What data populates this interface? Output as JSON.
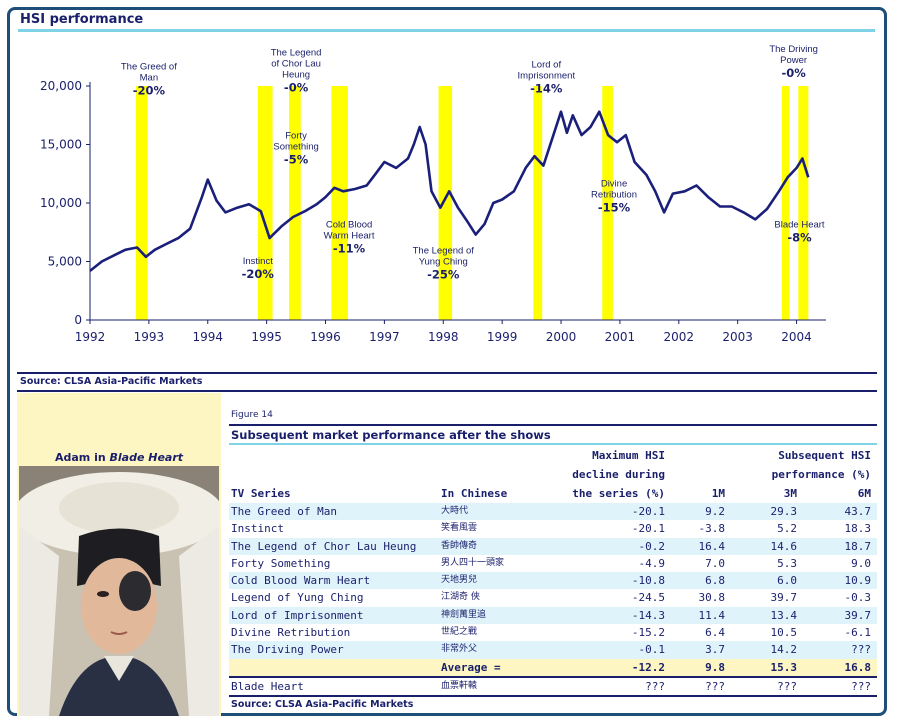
{
  "header": {
    "title": "HSI performance"
  },
  "chart_data": {
    "type": "line",
    "title": "HSI performance",
    "ylim": [
      0,
      20000
    ],
    "yticks": [
      0,
      5000,
      10000,
      15000,
      20000
    ],
    "ytick_labels": [
      "0",
      "5,000",
      "10,000",
      "15,000",
      "20,000"
    ],
    "xticks": [
      1992,
      1993,
      1994,
      1995,
      1996,
      1997,
      1998,
      1999,
      2000,
      2001,
      2002,
      2003,
      2004
    ],
    "xlim": [
      1992,
      2004.5
    ],
    "grid": false,
    "line_color": "#1a1f7a",
    "band_color": "#ffff00",
    "series": [
      {
        "values": [
          [
            1992.0,
            4200
          ],
          [
            1992.2,
            5000
          ],
          [
            1992.4,
            5500
          ],
          [
            1992.6,
            6000
          ],
          [
            1992.8,
            6200
          ],
          [
            1992.95,
            5400
          ],
          [
            1993.1,
            6000
          ],
          [
            1993.3,
            6500
          ],
          [
            1993.5,
            7000
          ],
          [
            1993.7,
            7800
          ],
          [
            1993.9,
            10500
          ],
          [
            1994.0,
            12000
          ],
          [
            1994.15,
            10200
          ],
          [
            1994.3,
            9200
          ],
          [
            1994.5,
            9600
          ],
          [
            1994.7,
            9900
          ],
          [
            1994.9,
            9300
          ],
          [
            1995.05,
            7000
          ],
          [
            1995.25,
            8000
          ],
          [
            1995.45,
            8800
          ],
          [
            1995.65,
            9300
          ],
          [
            1995.85,
            9900
          ],
          [
            1996.0,
            10500
          ],
          [
            1996.15,
            11300
          ],
          [
            1996.3,
            11000
          ],
          [
            1996.5,
            11200
          ],
          [
            1996.7,
            11500
          ],
          [
            1996.85,
            12500
          ],
          [
            1997.0,
            13500
          ],
          [
            1997.2,
            13000
          ],
          [
            1997.4,
            13800
          ],
          [
            1997.5,
            15000
          ],
          [
            1997.6,
            16500
          ],
          [
            1997.7,
            15000
          ],
          [
            1997.8,
            11000
          ],
          [
            1997.95,
            9600
          ],
          [
            1998.1,
            11000
          ],
          [
            1998.25,
            9600
          ],
          [
            1998.4,
            8500
          ],
          [
            1998.55,
            7300
          ],
          [
            1998.7,
            8200
          ],
          [
            1998.85,
            10000
          ],
          [
            1999.0,
            10300
          ],
          [
            1999.2,
            11000
          ],
          [
            1999.4,
            13000
          ],
          [
            1999.55,
            14000
          ],
          [
            1999.7,
            13200
          ],
          [
            1999.85,
            15500
          ],
          [
            2000.0,
            17800
          ],
          [
            2000.1,
            16000
          ],
          [
            2000.2,
            17500
          ],
          [
            2000.35,
            15800
          ],
          [
            2000.5,
            16500
          ],
          [
            2000.65,
            17800
          ],
          [
            2000.8,
            15800
          ],
          [
            2000.95,
            15200
          ],
          [
            2001.1,
            15800
          ],
          [
            2001.25,
            13500
          ],
          [
            2001.45,
            12400
          ],
          [
            2001.6,
            11000
          ],
          [
            2001.75,
            9200
          ],
          [
            2001.9,
            10800
          ],
          [
            2002.1,
            11000
          ],
          [
            2002.3,
            11500
          ],
          [
            2002.5,
            10500
          ],
          [
            2002.7,
            9700
          ],
          [
            2002.9,
            9700
          ],
          [
            2003.1,
            9200
          ],
          [
            2003.3,
            8600
          ],
          [
            2003.5,
            9500
          ],
          [
            2003.7,
            11000
          ],
          [
            2003.85,
            12200
          ],
          [
            2004.0,
            13000
          ],
          [
            2004.1,
            13800
          ],
          [
            2004.2,
            12200
          ]
        ]
      }
    ],
    "shows": [
      {
        "name": "The Greed of Man",
        "change": "-20%",
        "start": 1992.78,
        "end": 1992.98
      },
      {
        "name": "Instinct",
        "change": "-20%",
        "start": 1994.85,
        "end": 1995.05
      },
      {
        "name": "The Legend of Chor Lau Heung",
        "change": "-0%",
        "start": 1995.05,
        "end": 1995.1
      },
      {
        "name": "Forty Something",
        "change": "-5%",
        "start": 1995.38,
        "end": 1995.58
      },
      {
        "name": "Cold Blood Warm Heart",
        "change": "-11%",
        "start": 1996.1,
        "end": 1996.38
      },
      {
        "name": "The Legend of Yung Ching",
        "change": "-25%",
        "start": 1997.92,
        "end": 1998.15
      },
      {
        "name": "Lord of Imprisonment",
        "change": "-14%",
        "start": 1999.53,
        "end": 1999.68
      },
      {
        "name": "Divine Retribution",
        "change": "-15%",
        "start": 2000.7,
        "end": 2000.88
      },
      {
        "name": "The Driving Power",
        "change": "-0%",
        "start": 2003.75,
        "end": 2003.88
      },
      {
        "name": "Blade Heart",
        "change": "-8%",
        "start": 2004.03,
        "end": 2004.2
      }
    ],
    "annotations": [
      {
        "lines": [
          "The Greed of",
          "Man"
        ],
        "value": "-20%",
        "x": 1993.0,
        "y": 21400
      },
      {
        "lines": [
          "The Legend",
          "of Chor Lau",
          "Heung"
        ],
        "value": "-0%",
        "x": 1995.5,
        "y": 22600
      },
      {
        "lines": [
          "Forty",
          "Something"
        ],
        "value": "-5%",
        "x": 1995.5,
        "y": 15500
      },
      {
        "lines": [
          "Instinct"
        ],
        "value": "-20%",
        "x": 1994.85,
        "y": 4800
      },
      {
        "lines": [
          "Cold Blood",
          "Warm Heart"
        ],
        "value": "-11%",
        "x": 1996.4,
        "y": 7900
      },
      {
        "lines": [
          "The Legend of",
          "Yung Ching"
        ],
        "value": "-25%",
        "x": 1998.0,
        "y": 5700
      },
      {
        "lines": [
          "Lord of",
          "Imprisonment"
        ],
        "value": "-14%",
        "x": 1999.75,
        "y": 21600
      },
      {
        "lines": [
          "Divine",
          "Retribution"
        ],
        "value": "-15%",
        "x": 2000.9,
        "y": 11400
      },
      {
        "lines": [
          "The Driving",
          "Power"
        ],
        "value": "-0%",
        "x": 2003.95,
        "y": 22900
      },
      {
        "lines": [
          "Blade Heart"
        ],
        "value": "-8%",
        "x": 2004.05,
        "y": 7900
      }
    ]
  },
  "source_top": "Source: CLSA Asia-Pacific Markets",
  "photo": {
    "caption_prefix": "Adam in ",
    "caption_title": "Blade Heart"
  },
  "table": {
    "figure_label": "Figure 14",
    "title": "Subsequent market performance after the shows",
    "headers": {
      "series": "TV Series",
      "chinese": "In Chinese",
      "decline_line1": "Maximum HSI",
      "decline_line2": "decline during",
      "decline_line3": "the series (%)",
      "subsequent_line1": "Subsequent HSI",
      "subsequent_line2": "performance (%)",
      "m1": "1M",
      "m3": "3M",
      "m6": "6M"
    },
    "rows": [
      {
        "series": "The Greed of Man",
        "chinese": "大時代",
        "decline": "-20.1",
        "m1": "9.2",
        "m3": "29.3",
        "m6": "43.7"
      },
      {
        "series": "Instinct",
        "chinese": "笑看風雲",
        "decline": "-20.1",
        "m1": "-3.8",
        "m3": "5.2",
        "m6": "18.3"
      },
      {
        "series": "The Legend of Chor Lau Heung",
        "chinese": "香帥傳奇",
        "decline": "-0.2",
        "m1": "16.4",
        "m3": "14.6",
        "m6": "18.7"
      },
      {
        "series": "Forty Something",
        "chinese": "男人四十一頭家",
        "decline": "-4.9",
        "m1": "7.0",
        "m3": "5.3",
        "m6": "9.0"
      },
      {
        "series": "Cold Blood Warm Heart",
        "chinese": "天地男兒",
        "decline": "-10.8",
        "m1": "6.8",
        "m3": "6.0",
        "m6": "10.9"
      },
      {
        "series": "Legend of Yung Ching",
        "chinese": "江湖奇 俠",
        "decline": "-24.5",
        "m1": "30.8",
        "m3": "39.7",
        "m6": "-0.3"
      },
      {
        "series": "Lord of Imprisonment",
        "chinese": "神劍萬里追",
        "decline": "-14.3",
        "m1": "11.4",
        "m3": "13.4",
        "m6": "39.7"
      },
      {
        "series": "Divine Retribution",
        "chinese": "世紀之戰",
        "decline": "-15.2",
        "m1": "6.4",
        "m3": "10.5",
        "m6": "-6.1"
      },
      {
        "series": "The Driving Power",
        "chinese": "非常外父",
        "decline": "-0.1",
        "m1": "3.7",
        "m3": "14.2",
        "m6": "???"
      }
    ],
    "average": {
      "label": "Average =",
      "decline": "-12.2",
      "m1": "9.8",
      "m3": "15.3",
      "m6": "16.8"
    },
    "blade": {
      "series": "Blade Heart",
      "chinese": "血票軒轅",
      "decline": "???",
      "m1": "???",
      "m3": "???",
      "m6": "???"
    }
  },
  "source_bottom": "Source: CLSA Asia-Pacific Markets"
}
